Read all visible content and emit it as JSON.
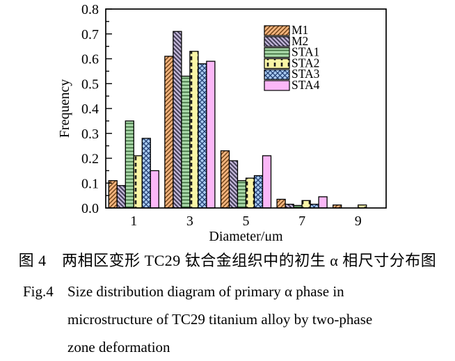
{
  "figure": {
    "caption_zh": "图 4　两相区变形 TC29 钛合金组织中的初生 α 相尺寸分布图",
    "caption_en": {
      "label": "Fig.4",
      "line1": "Size distribution diagram of primary α phase in",
      "line2": "microstructure of TC29 titanium alloy by two-phase",
      "line3": "zone deformation"
    }
  },
  "chart_data": {
    "type": "bar",
    "title": "",
    "xlabel": "Diameter/μm",
    "ylabel": "Frequency",
    "xlim": [
      0,
      10
    ],
    "ylim": [
      0.0,
      0.8
    ],
    "y_ticks": [
      0.0,
      0.1,
      0.2,
      0.3,
      0.4,
      0.5,
      0.6,
      0.7,
      0.8
    ],
    "y_minor_tick_step": 0.05,
    "grid": false,
    "legend_position": "upper-right-inside",
    "categories": [
      1,
      3,
      5,
      7,
      9
    ],
    "series": [
      {
        "name": "M1",
        "color": "#f5b47e",
        "hatch": "/",
        "hatch_color": "#6b4015",
        "values": [
          0.11,
          0.61,
          0.23,
          0.035,
          0.012
        ]
      },
      {
        "name": "M2",
        "color": "#c6badc",
        "hatch": "\\",
        "hatch_color": "#46415a",
        "values": [
          0.09,
          0.71,
          0.19,
          0.015,
          0
        ]
      },
      {
        "name": "STA1",
        "color": "#abdbab",
        "hatch": "-",
        "hatch_color": "#3f6e3f",
        "values": [
          0.35,
          0.53,
          0.11,
          0.01,
          0
        ]
      },
      {
        "name": "STA2",
        "color": "#faf6a6",
        "hatch": "|",
        "hatch_color": "#1a1a1a",
        "values": [
          0.21,
          0.63,
          0.12,
          0.03,
          0.012
        ]
      },
      {
        "name": "STA3",
        "color": "#a9caf0",
        "hatch": "x",
        "hatch_color": "#1e3a6e",
        "values": [
          0.28,
          0.58,
          0.13,
          0.015,
          0
        ]
      },
      {
        "name": "STA4",
        "color": "#fbb7f7",
        "hatch": "none",
        "hatch_color": "#000000",
        "values": [
          0.15,
          0.59,
          0.21,
          0.045,
          0
        ]
      }
    ]
  }
}
